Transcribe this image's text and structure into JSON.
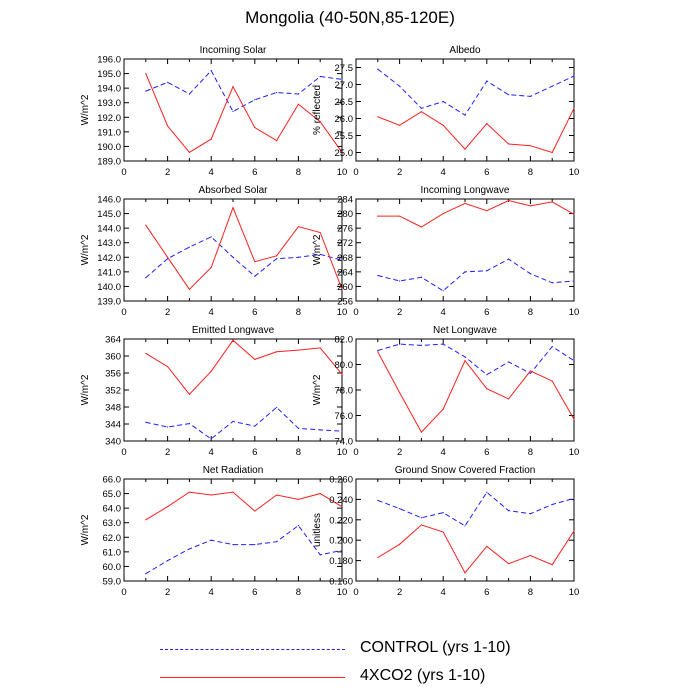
{
  "title": "Mongolia (40-50N,85-120E)",
  "legend": {
    "control_label": "CONTROL (yrs 1-10)",
    "co2_label": "4XCO2 (yrs 1-10)"
  },
  "colors": {
    "control": "#1f1fff",
    "co2": "#ff2020",
    "axis": "#000000"
  },
  "chart_data": [
    {
      "type": "line",
      "title": "Incoming Solar",
      "ylabel": "W/m^2",
      "x": [
        1,
        2,
        3,
        4,
        5,
        6,
        7,
        8,
        9,
        10
      ],
      "xlim": [
        0,
        10
      ],
      "xticks": [
        "0",
        "2",
        "4",
        "6",
        "8",
        "10"
      ],
      "ylim": [
        189.0,
        196.0
      ],
      "yticks": [
        "189.0",
        "190.0",
        "191.0",
        "192.0",
        "193.0",
        "194.0",
        "195.0",
        "196.0"
      ],
      "series": [
        {
          "name": "CONTROL (yrs 1-10)",
          "style": "dashed",
          "values": [
            193.8,
            194.4,
            193.6,
            195.2,
            192.4,
            193.2,
            193.7,
            193.6,
            194.8,
            194.6
          ]
        },
        {
          "name": "4XCO2 (yrs 1-10)",
          "style": "solid",
          "values": [
            195.0,
            191.4,
            189.6,
            190.5,
            194.1,
            191.3,
            190.4,
            192.9,
            191.7,
            189.6
          ]
        }
      ]
    },
    {
      "type": "line",
      "title": "Albedo",
      "ylabel": "% reflected",
      "x": [
        1,
        2,
        3,
        4,
        5,
        6,
        7,
        8,
        9,
        10
      ],
      "xlim": [
        0,
        10
      ],
      "xticks": [
        "0",
        "2",
        "4",
        "6",
        "8",
        "10"
      ],
      "ylim": [
        24.75,
        27.75
      ],
      "yticks": [
        "25.0",
        "25.5",
        "26.0",
        "26.5",
        "27.0",
        "27.5"
      ],
      "series": [
        {
          "name": "CONTROL (yrs 1-10)",
          "style": "dashed",
          "values": [
            27.45,
            26.95,
            26.3,
            26.5,
            26.1,
            27.1,
            26.7,
            26.65,
            26.95,
            27.25
          ]
        },
        {
          "name": "4XCO2 (yrs 1-10)",
          "style": "solid",
          "values": [
            26.05,
            25.8,
            26.2,
            25.8,
            25.1,
            25.85,
            25.25,
            25.2,
            25.0,
            26.3
          ]
        }
      ]
    },
    {
      "type": "line",
      "title": "Absorbed Solar",
      "ylabel": "W/m^2",
      "x": [
        1,
        2,
        3,
        4,
        5,
        6,
        7,
        8,
        9,
        10
      ],
      "xlim": [
        0,
        10
      ],
      "xticks": [
        "0",
        "2",
        "4",
        "6",
        "8",
        "10"
      ],
      "ylim": [
        139.0,
        146.0
      ],
      "yticks": [
        "139.0",
        "140.0",
        "141.0",
        "142.0",
        "143.0",
        "144.0",
        "145.0",
        "146.0"
      ],
      "series": [
        {
          "name": "CONTROL (yrs 1-10)",
          "style": "dashed",
          "values": [
            140.6,
            141.9,
            142.7,
            143.4,
            142.0,
            140.7,
            141.9,
            142.0,
            142.2,
            141.8
          ]
        },
        {
          "name": "4XCO2 (yrs 1-10)",
          "style": "solid",
          "values": [
            144.2,
            142.0,
            139.8,
            141.3,
            145.4,
            141.7,
            142.1,
            144.1,
            143.7,
            139.8
          ]
        }
      ]
    },
    {
      "type": "line",
      "title": "Incoming Longwave",
      "ylabel": "W/m^2",
      "x": [
        1,
        2,
        3,
        4,
        5,
        6,
        7,
        8,
        9,
        10
      ],
      "xlim": [
        0,
        10
      ],
      "xticks": [
        "0",
        "2",
        "4",
        "6",
        "8",
        "10"
      ],
      "ylim": [
        256,
        284
      ],
      "yticks": [
        "256",
        "260",
        "264",
        "268",
        "272",
        "276",
        "280",
        "284"
      ],
      "series": [
        {
          "name": "CONTROL (yrs 1-10)",
          "style": "dashed",
          "values": [
            263.0,
            261.5,
            262.5,
            258.8,
            264.0,
            264.3,
            267.5,
            263.5,
            261.0,
            261.5
          ]
        },
        {
          "name": "4XCO2 (yrs 1-10)",
          "style": "solid",
          "values": [
            279.3,
            279.3,
            276.3,
            280.0,
            282.8,
            280.8,
            283.6,
            282.1,
            283.2,
            279.8
          ]
        }
      ]
    },
    {
      "type": "line",
      "title": "Emitted Longwave",
      "ylabel": "W/m^2",
      "x": [
        1,
        2,
        3,
        4,
        5,
        6,
        7,
        8,
        9,
        10
      ],
      "xlim": [
        0,
        10
      ],
      "xticks": [
        "0",
        "2",
        "4",
        "6",
        "8",
        "10"
      ],
      "ylim": [
        340,
        364
      ],
      "yticks": [
        "340",
        "344",
        "348",
        "352",
        "356",
        "360",
        "364"
      ],
      "series": [
        {
          "name": "CONTROL (yrs 1-10)",
          "style": "dashed",
          "values": [
            344.4,
            343.3,
            344.1,
            340.5,
            344.6,
            343.5,
            347.9,
            343.0,
            342.6,
            342.3
          ]
        },
        {
          "name": "4XCO2 (yrs 1-10)",
          "style": "solid",
          "values": [
            360.6,
            357.5,
            351.0,
            356.4,
            363.7,
            359.2,
            361.0,
            361.4,
            361.9,
            355.7
          ]
        }
      ]
    },
    {
      "type": "line",
      "title": "Net Longwave",
      "ylabel": "W/m^2",
      "x": [
        1,
        2,
        3,
        4,
        5,
        6,
        7,
        8,
        9,
        10
      ],
      "xlim": [
        0,
        10
      ],
      "xticks": [
        "0",
        "2",
        "4",
        "6",
        "8",
        "10"
      ],
      "ylim": [
        74.0,
        82.0
      ],
      "yticks": [
        "74.0",
        "76.0",
        "78.0",
        "80.0",
        "82.0"
      ],
      "series": [
        {
          "name": "CONTROL (yrs 1-10)",
          "style": "dashed",
          "values": [
            81.1,
            81.6,
            81.5,
            81.6,
            80.6,
            79.2,
            80.2,
            79.3,
            81.4,
            80.3
          ]
        },
        {
          "name": "4XCO2 (yrs 1-10)",
          "style": "solid",
          "values": [
            81.0,
            77.8,
            74.7,
            76.5,
            80.3,
            78.1,
            77.3,
            79.5,
            78.7,
            75.7
          ]
        }
      ]
    },
    {
      "type": "line",
      "title": "Net Radiation",
      "ylabel": "W/m^2",
      "x": [
        1,
        2,
        3,
        4,
        5,
        6,
        7,
        8,
        9,
        10
      ],
      "xlim": [
        0,
        10
      ],
      "xticks": [
        "0",
        "2",
        "4",
        "6",
        "8",
        "10"
      ],
      "ylim": [
        59.0,
        66.0
      ],
      "yticks": [
        "59.0",
        "60.0",
        "61.0",
        "62.0",
        "63.0",
        "64.0",
        "65.0",
        "66.0"
      ],
      "series": [
        {
          "name": "CONTROL (yrs 1-10)",
          "style": "dashed",
          "values": [
            59.5,
            60.4,
            61.2,
            61.8,
            61.5,
            61.5,
            61.7,
            62.8,
            60.8,
            61.1
          ]
        },
        {
          "name": "4XCO2 (yrs 1-10)",
          "style": "solid",
          "values": [
            63.2,
            64.1,
            65.1,
            64.9,
            65.1,
            63.8,
            64.9,
            64.6,
            65.0,
            64.1
          ]
        }
      ]
    },
    {
      "type": "line",
      "title": "Ground Snow Covered Fraction",
      "ylabel": "unitless",
      "x": [
        1,
        2,
        3,
        4,
        5,
        6,
        7,
        8,
        9,
        10
      ],
      "xlim": [
        0,
        10
      ],
      "xticks": [
        "0",
        "2",
        "4",
        "6",
        "8",
        "10"
      ],
      "ylim": [
        0.16,
        0.26
      ],
      "yticks": [
        "0.160",
        "0.180",
        "0.200",
        "0.220",
        "0.240",
        "0.260"
      ],
      "series": [
        {
          "name": "CONTROL (yrs 1-10)",
          "style": "dashed",
          "values": [
            0.239,
            0.231,
            0.222,
            0.227,
            0.214,
            0.247,
            0.229,
            0.226,
            0.235,
            0.241
          ]
        },
        {
          "name": "4XCO2 (yrs 1-10)",
          "style": "solid",
          "values": [
            0.183,
            0.196,
            0.215,
            0.208,
            0.168,
            0.194,
            0.177,
            0.185,
            0.176,
            0.209
          ]
        }
      ]
    }
  ]
}
